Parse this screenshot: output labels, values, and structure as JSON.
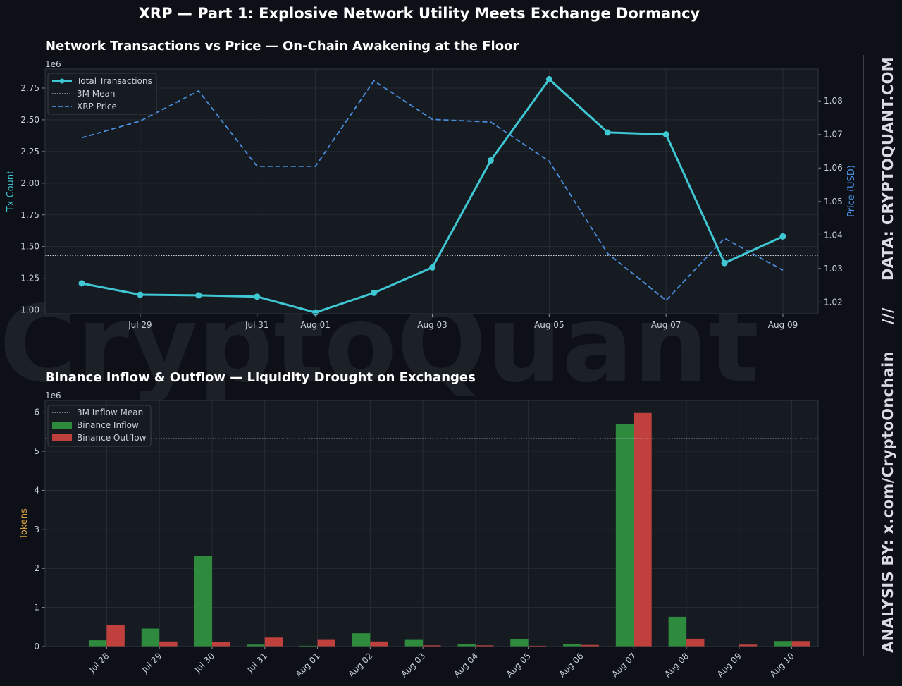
{
  "figure": {
    "suptitle": "XRP — Part 1: Explosive Network Utility Meets Exchange Dormancy",
    "watermark": "CryptoQuant",
    "sidebar": {
      "analysis": "ANALYSIS BY: x.com/CryptoOnchain",
      "separator": "///",
      "source": "DATA: CRYPTOQUANT.COM"
    },
    "colors": {
      "background": "#0d1117",
      "panel": "#161b22",
      "grid": "#2a3038",
      "tx_line": "#3fc8d4",
      "price_line": "#4a8fe0",
      "mean_line": "#c8cdd4",
      "inflow": "#2e8b3e",
      "outflow": "#c0403e",
      "ylabel_tokens": "#d6a040"
    }
  },
  "chart_data": [
    {
      "type": "line",
      "title": "Network Transactions vs Price — On-Chain Awakening at the Floor",
      "x": [
        "2025-07-28",
        "2025-07-29",
        "2025-07-30",
        "2025-07-31",
        "2025-08-01",
        "2025-08-02",
        "2025-08-03",
        "2025-08-04",
        "2025-08-05",
        "2025-08-06",
        "2025-08-07",
        "2025-08-08",
        "2025-08-09"
      ],
      "xticks": [
        "Jul 29",
        "Jul 31",
        "Aug 01",
        "Aug 03",
        "Aug 05",
        "Aug 07",
        "Aug 09"
      ],
      "xtick_dates": [
        "2025-07-29",
        "2025-07-31",
        "2025-08-01",
        "2025-08-03",
        "2025-08-05",
        "2025-08-07",
        "2025-08-09"
      ],
      "ylabel": "Tx Count",
      "y_offset_text": "1e6",
      "ylim": [
        0.97,
        2.9
      ],
      "yticks": [
        1.0,
        1.25,
        1.5,
        1.75,
        2.0,
        2.25,
        2.5,
        2.75
      ],
      "y2label": "Price (USD)",
      "y2lim": [
        1.0165,
        1.0895
      ],
      "y2ticks": [
        1.02,
        1.03,
        1.04,
        1.05,
        1.06,
        1.07,
        1.08
      ],
      "grid": true,
      "legend_position": "top-left",
      "series": [
        {
          "name": "Total Transactions",
          "axis": "left",
          "style": "solid-markers",
          "values": [
            1.21,
            1.12,
            1.115,
            1.105,
            0.98,
            1.135,
            1.335,
            2.18,
            2.82,
            2.4,
            2.385,
            1.37,
            1.58
          ]
        },
        {
          "name": "3M Mean",
          "axis": "left",
          "style": "dotted-hline",
          "value": 1.43
        },
        {
          "name": "XRP Price",
          "axis": "right",
          "style": "dashed",
          "values": [
            1.069,
            1.074,
            1.083,
            1.0605,
            1.0605,
            1.086,
            1.0745,
            1.0737,
            1.062,
            1.0345,
            1.0205,
            1.039,
            1.0295
          ]
        }
      ]
    },
    {
      "type": "bar",
      "title": "Binance Inflow & Outflow — Liquidity Drought on Exchanges",
      "categories": [
        "Jul 28",
        "Jul 29",
        "Jul 30",
        "Jul 31",
        "Aug 01",
        "Aug 02",
        "Aug 03",
        "Aug 04",
        "Aug 05",
        "Aug 06",
        "Aug 07",
        "Aug 08",
        "Aug 09",
        "Aug 10"
      ],
      "ylabel": "Tokens",
      "y_offset_text": "1e6",
      "ylim": [
        0,
        6.3
      ],
      "yticks": [
        0,
        1,
        2,
        3,
        4,
        5,
        6
      ],
      "grid": true,
      "legend_position": "top-left",
      "series": [
        {
          "name": "Binance Inflow",
          "values": [
            0.16,
            0.46,
            2.31,
            0.05,
            0.02,
            0.34,
            0.17,
            0.07,
            0.18,
            0.07,
            5.7,
            0.76,
            0.0,
            0.14
          ]
        },
        {
          "name": "Binance Outflow",
          "values": [
            0.56,
            0.13,
            0.11,
            0.23,
            0.17,
            0.13,
            0.03,
            0.03,
            0.02,
            0.04,
            5.98,
            0.2,
            0.05,
            0.14
          ]
        }
      ],
      "reference_lines": [
        {
          "name": "3M Inflow Mean",
          "value": 5.32
        }
      ]
    }
  ]
}
